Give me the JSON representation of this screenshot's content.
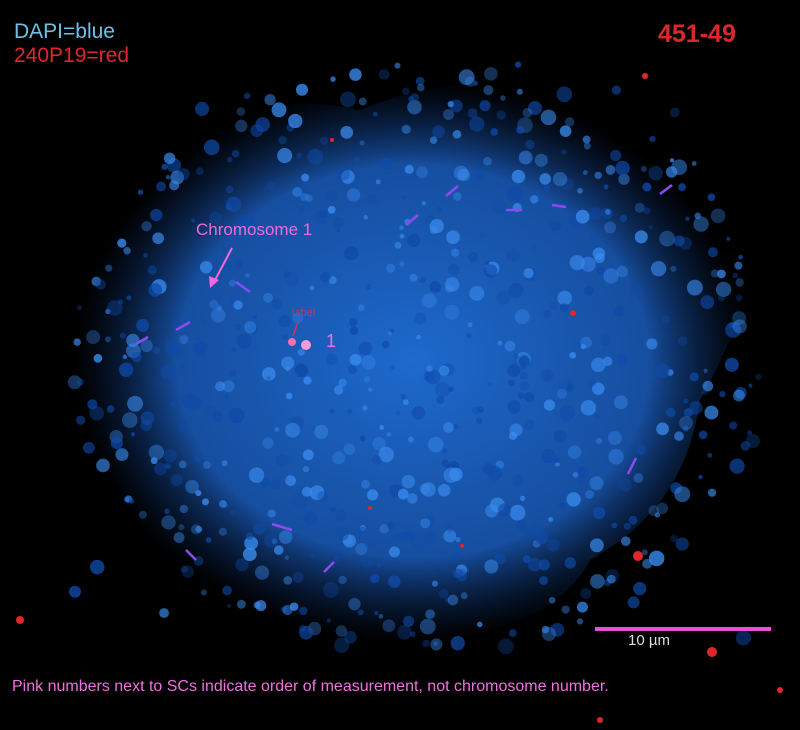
{
  "legend": {
    "dapi": "DAPI=blue",
    "probe": "240P19=red"
  },
  "sample_id": "451-49",
  "annotations": {
    "chromosome": "Chromosome 1",
    "small_label": "label",
    "order_number": "1"
  },
  "scale_bar": {
    "label": "10 µm"
  },
  "footnote": "Pink numbers next to SCs indicate order of measurement, not chromosome number.",
  "colors": {
    "dapi": "#2a7fe0",
    "probe": "#e0262a",
    "annotation": "#f06ad8",
    "sc_marks": "#8a4cf0"
  }
}
